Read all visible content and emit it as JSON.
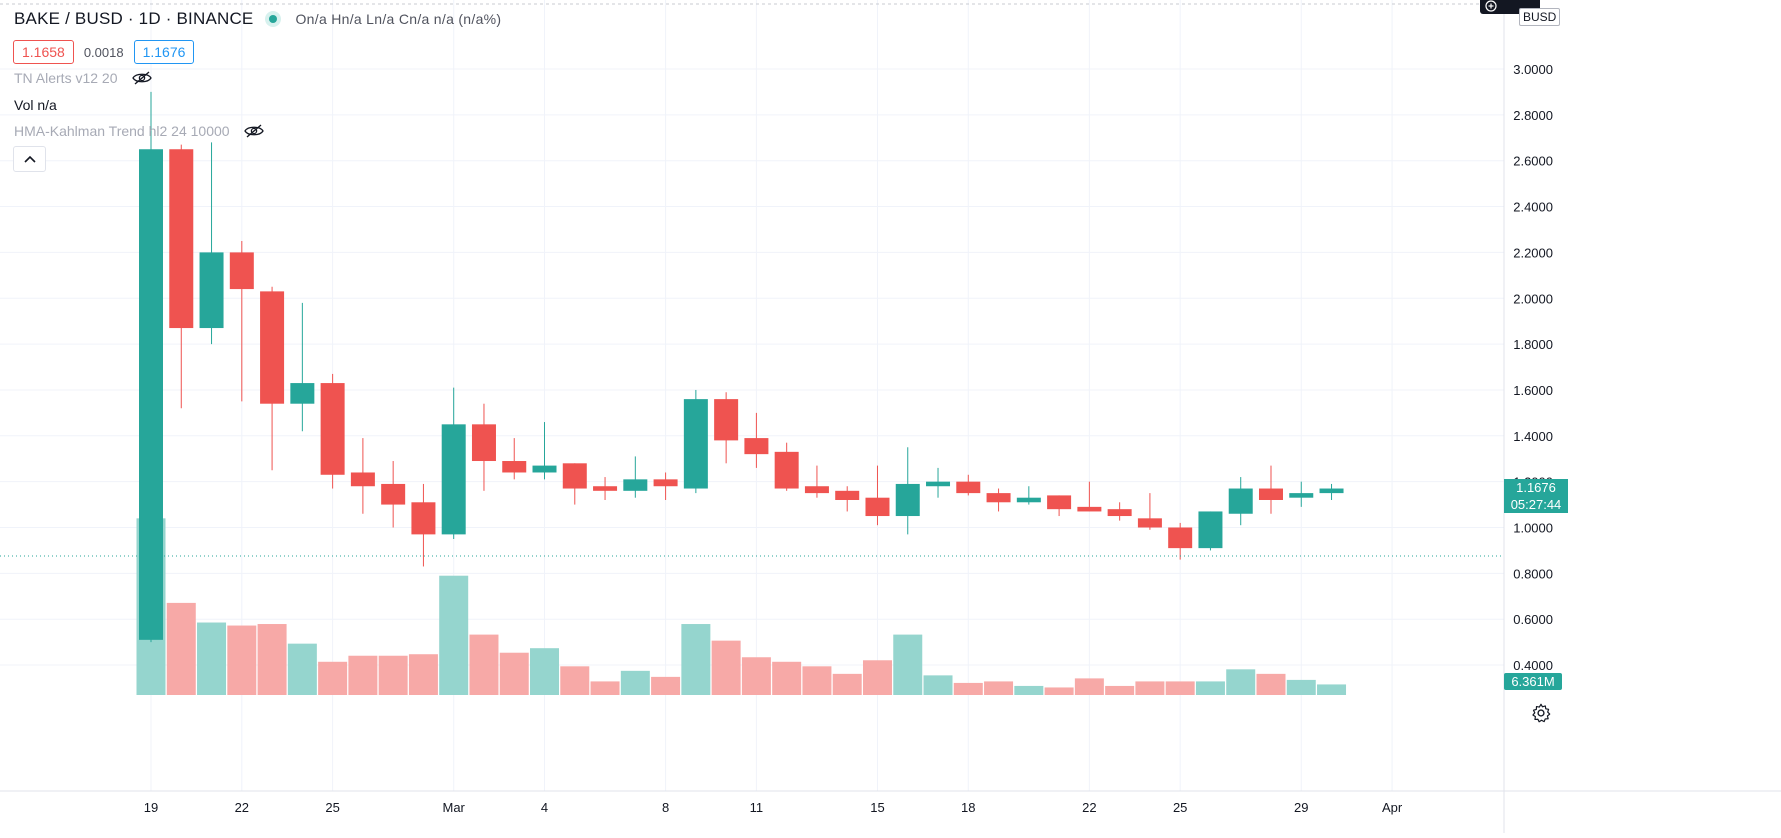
{
  "header": {
    "symbol": "BAKE / BUSD · 1D · BINANCE",
    "ohlc": "On/a  Hn/a  Ln/a  Cn/a  n/a (n/a%)"
  },
  "prices": {
    "bid": "1.1658",
    "spread": "0.0018",
    "ask": "1.1676"
  },
  "indicators": [
    {
      "label": "TN Alerts v12 20",
      "hidden": true
    },
    {
      "label": "Vol  n/a",
      "hidden": false
    },
    {
      "label": "HMA-Kahlman Trend hl2 24 10000",
      "hidden": true
    }
  ],
  "price_axis": {
    "currency": "BUSD",
    "current_price": "1.1676",
    "countdown": "05:27:44",
    "volume_label": "6.361M"
  },
  "colors": {
    "up": "#26a69a",
    "down": "#ef5350",
    "up_volume": "#95d5ce",
    "down_volume": "#f7a9a7",
    "grid": "#f0f3fa"
  },
  "icons": {
    "eye_hidden": "eye-off-icon",
    "collapse": "chevron-up-icon",
    "settings": "gear-icon",
    "zoom": "plus-icon"
  },
  "chart_data": {
    "type": "candlestick",
    "ylim": [
      0.3,
      3.2
    ],
    "y_ticks": [
      "3.0000",
      "2.8000",
      "2.6000",
      "2.4000",
      "2.2000",
      "2.0000",
      "1.8000",
      "1.6000",
      "1.4000",
      "1.2000",
      "1.0000",
      "0.8000",
      "0.6000",
      "0.4000"
    ],
    "x_ticks": [
      {
        "i": 0,
        "label": "19"
      },
      {
        "i": 3,
        "label": "22"
      },
      {
        "i": 6,
        "label": "25"
      },
      {
        "i": 10,
        "label": "Mar"
      },
      {
        "i": 13,
        "label": "4"
      },
      {
        "i": 17,
        "label": "8"
      },
      {
        "i": 20,
        "label": "11"
      },
      {
        "i": 24,
        "label": "15"
      },
      {
        "i": 27,
        "label": "18"
      },
      {
        "i": 31,
        "label": "22"
      },
      {
        "i": 34,
        "label": "25"
      },
      {
        "i": 38,
        "label": "29"
      },
      {
        "i": 41,
        "label": "Apr"
      }
    ],
    "candles": [
      {
        "o": 0.51,
        "h": 2.9,
        "l": 0.5,
        "c": 2.65,
        "v": 11.7
      },
      {
        "o": 2.65,
        "h": 2.67,
        "l": 1.52,
        "c": 1.87,
        "v": 6.1
      },
      {
        "o": 1.87,
        "h": 2.68,
        "l": 1.8,
        "c": 2.2,
        "v": 4.8
      },
      {
        "o": 2.2,
        "h": 2.25,
        "l": 1.55,
        "c": 2.04,
        "v": 4.6
      },
      {
        "o": 2.03,
        "h": 2.05,
        "l": 1.25,
        "c": 1.54,
        "v": 4.7
      },
      {
        "o": 1.54,
        "h": 1.98,
        "l": 1.42,
        "c": 1.63,
        "v": 3.4
      },
      {
        "o": 1.63,
        "h": 1.67,
        "l": 1.17,
        "c": 1.23,
        "v": 2.2
      },
      {
        "o": 1.24,
        "h": 1.39,
        "l": 1.06,
        "c": 1.18,
        "v": 2.6
      },
      {
        "o": 1.19,
        "h": 1.29,
        "l": 1.0,
        "c": 1.1,
        "v": 2.6
      },
      {
        "o": 1.11,
        "h": 1.19,
        "l": 0.83,
        "c": 0.97,
        "v": 2.7
      },
      {
        "o": 0.97,
        "h": 1.61,
        "l": 0.95,
        "c": 1.45,
        "v": 7.9
      },
      {
        "o": 1.45,
        "h": 1.54,
        "l": 1.16,
        "c": 1.29,
        "v": 4.0
      },
      {
        "o": 1.29,
        "h": 1.39,
        "l": 1.21,
        "c": 1.24,
        "v": 2.8
      },
      {
        "o": 1.24,
        "h": 1.46,
        "l": 1.21,
        "c": 1.27,
        "v": 3.1
      },
      {
        "o": 1.28,
        "h": 1.28,
        "l": 1.1,
        "c": 1.17,
        "v": 1.9
      },
      {
        "o": 1.18,
        "h": 1.22,
        "l": 1.12,
        "c": 1.16,
        "v": 0.9
      },
      {
        "o": 1.16,
        "h": 1.31,
        "l": 1.13,
        "c": 1.21,
        "v": 1.6
      },
      {
        "o": 1.21,
        "h": 1.24,
        "l": 1.12,
        "c": 1.18,
        "v": 1.2
      },
      {
        "o": 1.17,
        "h": 1.6,
        "l": 1.15,
        "c": 1.56,
        "v": 4.7
      },
      {
        "o": 1.56,
        "h": 1.59,
        "l": 1.28,
        "c": 1.38,
        "v": 3.6
      },
      {
        "o": 1.39,
        "h": 1.5,
        "l": 1.26,
        "c": 1.32,
        "v": 2.5
      },
      {
        "o": 1.33,
        "h": 1.37,
        "l": 1.16,
        "c": 1.17,
        "v": 2.2
      },
      {
        "o": 1.18,
        "h": 1.27,
        "l": 1.13,
        "c": 1.15,
        "v": 1.9
      },
      {
        "o": 1.16,
        "h": 1.18,
        "l": 1.07,
        "c": 1.12,
        "v": 1.4
      },
      {
        "o": 1.13,
        "h": 1.27,
        "l": 1.01,
        "c": 1.05,
        "v": 2.3
      },
      {
        "o": 1.05,
        "h": 1.35,
        "l": 0.97,
        "c": 1.19,
        "v": 4.0
      },
      {
        "o": 1.18,
        "h": 1.26,
        "l": 1.13,
        "c": 1.2,
        "v": 1.3
      },
      {
        "o": 1.2,
        "h": 1.23,
        "l": 1.14,
        "c": 1.15,
        "v": 0.8
      },
      {
        "o": 1.15,
        "h": 1.17,
        "l": 1.07,
        "c": 1.11,
        "v": 0.9
      },
      {
        "o": 1.11,
        "h": 1.18,
        "l": 1.1,
        "c": 1.13,
        "v": 0.6
      },
      {
        "o": 1.14,
        "h": 1.14,
        "l": 1.05,
        "c": 1.08,
        "v": 0.5
      },
      {
        "o": 1.09,
        "h": 1.2,
        "l": 1.07,
        "c": 1.07,
        "v": 1.1
      },
      {
        "o": 1.08,
        "h": 1.11,
        "l": 1.03,
        "c": 1.05,
        "v": 0.6
      },
      {
        "o": 1.04,
        "h": 1.15,
        "l": 0.99,
        "c": 1.0,
        "v": 0.9
      },
      {
        "o": 1.0,
        "h": 1.02,
        "l": 0.86,
        "c": 0.91,
        "v": 0.9
      },
      {
        "o": 0.91,
        "h": 1.07,
        "l": 0.9,
        "c": 1.07,
        "v": 0.9
      },
      {
        "o": 1.06,
        "h": 1.22,
        "l": 1.01,
        "c": 1.17,
        "v": 1.7
      },
      {
        "o": 1.17,
        "h": 1.27,
        "l": 1.06,
        "c": 1.12,
        "v": 1.4
      },
      {
        "o": 1.13,
        "h": 1.2,
        "l": 1.09,
        "c": 1.15,
        "v": 1.0
      },
      {
        "o": 1.15,
        "h": 1.19,
        "l": 1.12,
        "c": 1.17,
        "v": 0.7
      }
    ]
  }
}
